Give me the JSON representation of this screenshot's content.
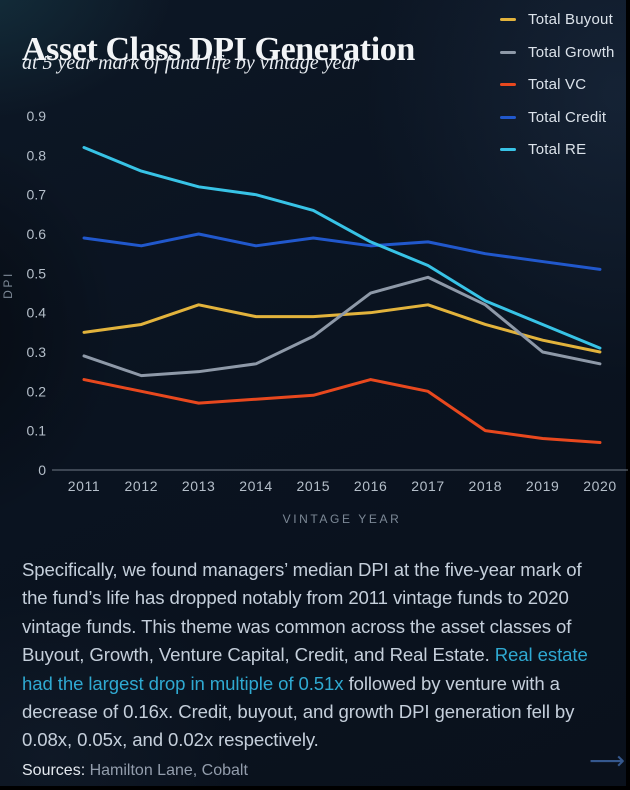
{
  "header": {
    "title": "Asset Class DPI Generation",
    "subtitle": "at 5 year mark of fund life by vintage year"
  },
  "legend": [
    {
      "label": "Total Buyout",
      "color": "#e2b33c"
    },
    {
      "label": "Total Growth",
      "color": "#8e99a8"
    },
    {
      "label": "Total VC",
      "color": "#e8481e"
    },
    {
      "label": "Total Credit",
      "color": "#2158cc"
    },
    {
      "label": "Total RE",
      "color": "#38c3e6"
    }
  ],
  "chart_data": {
    "type": "line",
    "x": [
      2011,
      2012,
      2013,
      2014,
      2015,
      2016,
      2017,
      2018,
      2019,
      2020
    ],
    "series": [
      {
        "name": "Total Buyout",
        "color": "#e2b33c",
        "values": [
          0.35,
          0.37,
          0.42,
          0.39,
          0.39,
          0.4,
          0.42,
          0.37,
          0.33,
          0.3
        ]
      },
      {
        "name": "Total Growth",
        "color": "#8e99a8",
        "values": [
          0.29,
          0.24,
          0.25,
          0.27,
          0.34,
          0.45,
          0.49,
          0.42,
          0.3,
          0.27
        ]
      },
      {
        "name": "Total VC",
        "color": "#e8481e",
        "values": [
          0.23,
          0.2,
          0.17,
          0.18,
          0.19,
          0.23,
          0.2,
          0.1,
          0.08,
          0.07
        ]
      },
      {
        "name": "Total Credit",
        "color": "#2158cc",
        "values": [
          0.59,
          0.57,
          0.6,
          0.57,
          0.59,
          0.57,
          0.58,
          0.55,
          0.53,
          0.51
        ]
      },
      {
        "name": "Total RE",
        "color": "#38c3e6",
        "values": [
          0.82,
          0.76,
          0.72,
          0.7,
          0.66,
          0.58,
          0.52,
          0.43,
          0.37,
          0.31
        ]
      }
    ],
    "xlabel": "VINTAGE YEAR",
    "ylabel": "DPI",
    "ylim": [
      0,
      0.9
    ],
    "yticks": [
      0.9,
      0.8,
      0.7,
      0.6,
      0.5,
      0.4,
      0.3,
      0.2,
      0.1,
      0
    ],
    "grid": false,
    "legend_position": "top-right"
  },
  "body": {
    "pre_highlight": "Specifically, we found managers’ median DPI at the five-year mark of the fund’s life has dropped notably from 2011 vintage funds to 2020 vintage funds. This theme was common across the asset classes of Buyout, Growth, Venture Capital, Credit, and Real Estate. ",
    "highlight": "Real estate had the largest drop in multiple of 0.51x",
    "post_highlight": " followed by venture with a decrease of 0.16x. Credit, buyout, and growth DPI generation fell by 0.08x, 0.05x, and 0.02x respectively.",
    "highlight_color": "#2fa9d1"
  },
  "footer": {
    "sources_label": "Sources:",
    "sources_value": " Hamilton Lane, Cobalt",
    "arrow": "⟶",
    "arrow_color": "#35588e"
  }
}
